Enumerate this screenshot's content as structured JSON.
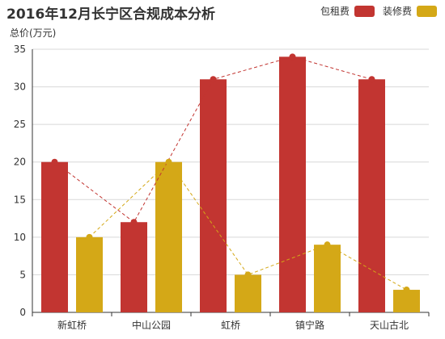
{
  "chart_data": {
    "type": "bar",
    "title": "2016年12月长宁区合规成本分析",
    "ylabel": "总价(万元)",
    "xlabel": "",
    "categories": [
      "新虹桥",
      "中山公园",
      "虹桥",
      "镇宁路",
      "天山古北"
    ],
    "series": [
      {
        "name": "包租费",
        "values": [
          20,
          12,
          31,
          34,
          31
        ],
        "color": "#c23531"
      },
      {
        "name": "装修费",
        "values": [
          10,
          20,
          5,
          9,
          3
        ],
        "color": "#d4a817"
      }
    ],
    "overlay": "dashed-line-through-bar-tops",
    "ylim": [
      0,
      35
    ],
    "yticks": [
      0,
      5,
      10,
      15,
      20,
      25,
      30,
      35
    ],
    "grid": true,
    "legend_position": "top-right"
  }
}
